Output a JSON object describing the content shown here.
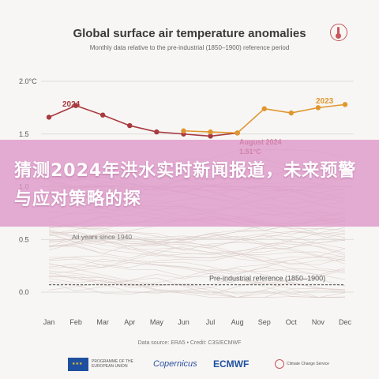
{
  "header": {
    "title": "Global surface air temperature anomalies",
    "subtitle": "Monthly data relative to the pre-industrial (1850–1900) reference period"
  },
  "overlay": {
    "text": "猜测2024年洪水实时新闻报道，未来预警与应对策略的探"
  },
  "footer": {
    "source": "Data source: ERA5 • Credit: C3S/ECMWF",
    "logos": {
      "eu": "PROGRAMME OF THE EUROPEAN UNION",
      "copernicus": "Copernicus",
      "ecmwf": "ECMWF",
      "c3s": "Climate Change Service"
    }
  },
  "colors": {
    "series_2024": "#a83a40",
    "series_2023": "#e0962e",
    "background_years": "#d9c9c6",
    "reference_line": "#666666"
  },
  "chart_data": {
    "type": "line",
    "title": "Global surface air temperature anomalies",
    "subtitle": "Monthly data relative to the pre-industrial (1850–1900) reference period",
    "xlabel": "",
    "ylabel": "",
    "categories": [
      "Jan",
      "Feb",
      "Mar",
      "Apr",
      "May",
      "Jun",
      "Jul",
      "Aug",
      "Sep",
      "Oct",
      "Nov",
      "Dec"
    ],
    "y_tick_labels": [
      "0.0",
      "0.5",
      "1.0",
      "1.5",
      "2.0°C"
    ],
    "y_ticks": [
      0.0,
      0.5,
      1.0,
      1.5,
      2.0
    ],
    "ylim": [
      0.0,
      2.0
    ],
    "grid": "horizontal",
    "series": [
      {
        "name": "2024",
        "values": [
          1.66,
          1.77,
          1.68,
          1.58,
          1.52,
          1.5,
          1.48,
          1.51,
          null,
          null,
          null,
          null
        ]
      },
      {
        "name": "2023",
        "values": [
          null,
          null,
          null,
          null,
          null,
          1.53,
          1.52,
          1.51,
          1.74,
          1.7,
          1.75,
          1.78
        ]
      }
    ],
    "background_label": "All years since 1940",
    "reference_line": {
      "value": 0.07,
      "label": "Pre-industrial reference (1850–1900)"
    },
    "annotation": {
      "text": "August 2024",
      "value_text": "1.51°C"
    }
  }
}
